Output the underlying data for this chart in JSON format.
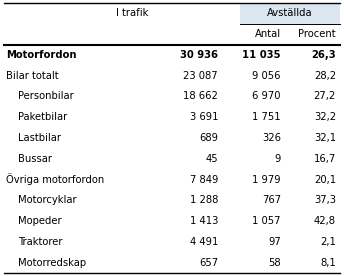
{
  "rows": [
    {
      "label": "Motorfordon",
      "itrafik": "30 936",
      "antal": "11 035",
      "procent": "26,3",
      "bold": true,
      "indent": 0
    },
    {
      "label": "Bilar totalt",
      "itrafik": "23 087",
      "antal": "9 056",
      "procent": "28,2",
      "bold": false,
      "indent": 0
    },
    {
      "label": "Personbilar",
      "itrafik": "18 662",
      "antal": "6 970",
      "procent": "27,2",
      "bold": false,
      "indent": 1
    },
    {
      "label": "Paketbilar",
      "itrafik": "3 691",
      "antal": "1 751",
      "procent": "32,2",
      "bold": false,
      "indent": 1
    },
    {
      "label": "Lastbilar",
      "itrafik": "689",
      "antal": "326",
      "procent": "32,1",
      "bold": false,
      "indent": 1
    },
    {
      "label": "Bussar",
      "itrafik": "45",
      "antal": "9",
      "procent": "16,7",
      "bold": false,
      "indent": 1
    },
    {
      "label": "Övriga motorfordon",
      "itrafik": "7 849",
      "antal": "1 979",
      "procent": "20,1",
      "bold": false,
      "indent": 0
    },
    {
      "label": "Motorcyklar",
      "itrafik": "1 288",
      "antal": "767",
      "procent": "37,3",
      "bold": false,
      "indent": 1
    },
    {
      "label": "Mopeder",
      "itrafik": "1 413",
      "antal": "1 057",
      "procent": "42,8",
      "bold": false,
      "indent": 1
    },
    {
      "label": "Traktorer",
      "itrafik": "4 491",
      "antal": "97",
      "procent": "2,1",
      "bold": false,
      "indent": 1
    },
    {
      "label": "Motorredskap",
      "itrafik": "657",
      "antal": "58",
      "procent": "8,1",
      "bold": false,
      "indent": 1
    }
  ],
  "bg_color": "#ffffff",
  "header_bg": "#dce6f1",
  "text_color": "#000000",
  "font_size": 7.2
}
